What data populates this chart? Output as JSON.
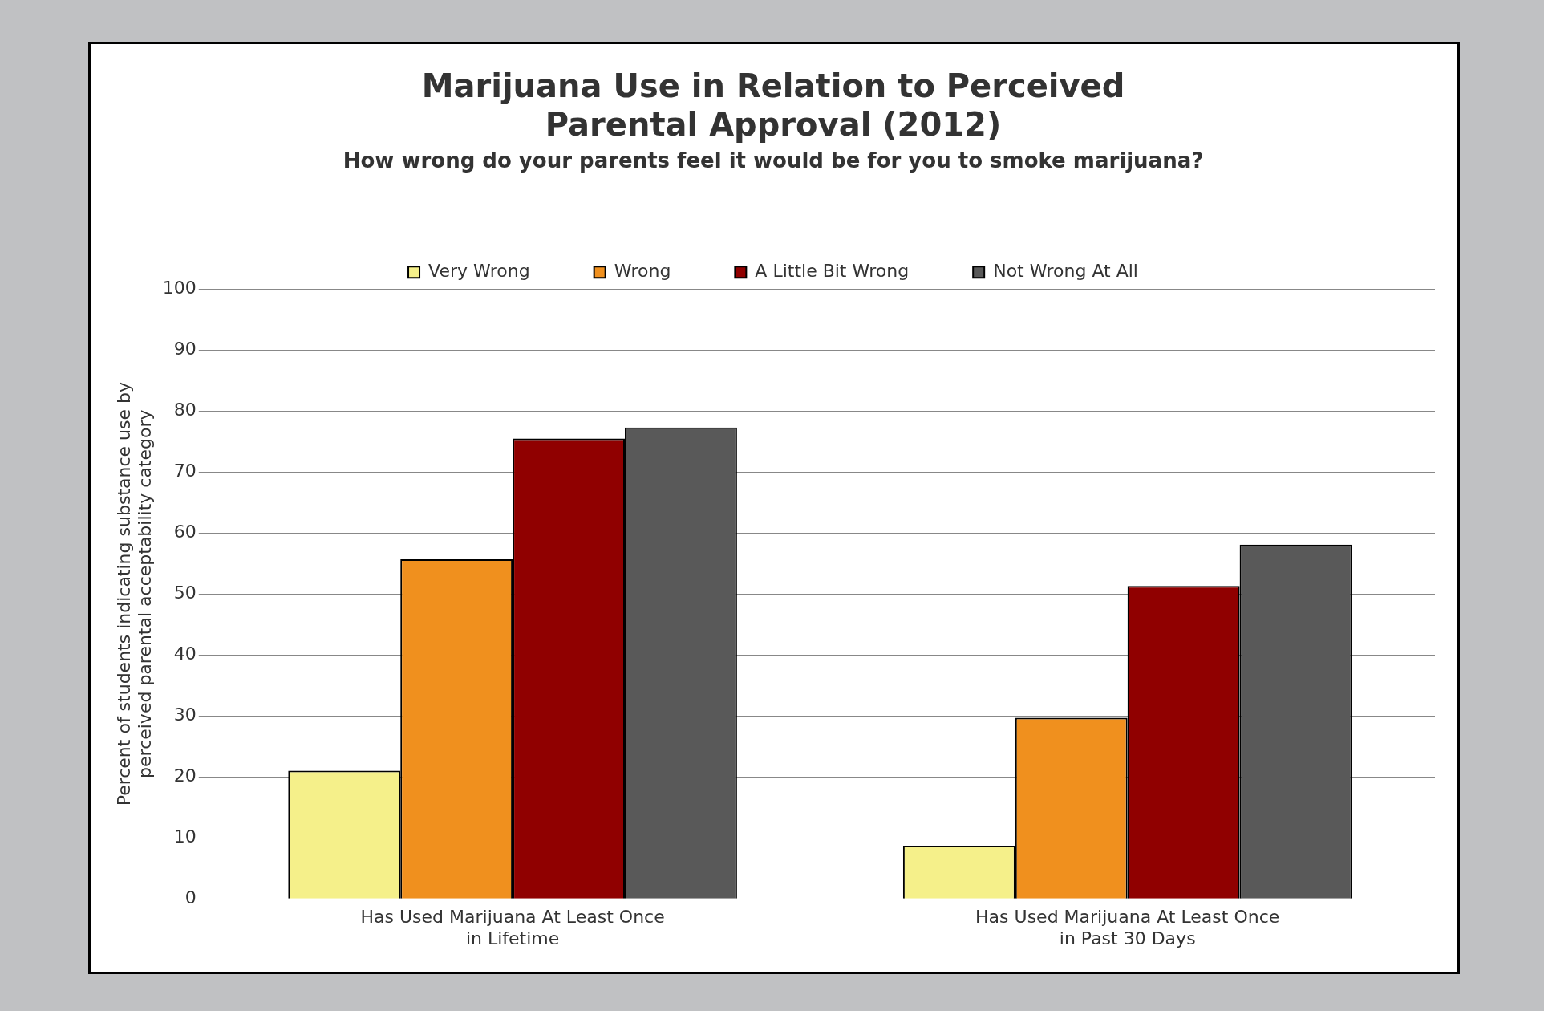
{
  "chart_data": {
    "type": "bar",
    "title": "Marijuana Use in Relation to Perceived Parental Approval (2012)",
    "subtitle": "How wrong do your parents feel it would be for you to smoke marijuana?",
    "ylabel": "Percent of students indicating substance use by perceived parental acceptability category",
    "categories": [
      "Has Used Marijuana At Least Once in Lifetime",
      "Has Used Marijuana At Least Once in Past 30 Days"
    ],
    "series": [
      {
        "name": "Very Wrong",
        "color": "#f5f08a",
        "values": [
          21.0,
          8.7
        ]
      },
      {
        "name": "Wrong",
        "color": "#f0901e",
        "values": [
          55.7,
          29.7
        ]
      },
      {
        "name": "A Little Bit Wrong",
        "color": "#900000",
        "values": [
          75.5,
          51.3
        ]
      },
      {
        "name": "Not Wrong At All",
        "color": "#595959",
        "values": [
          77.3,
          58.1
        ]
      }
    ],
    "ylim": [
      0,
      100
    ],
    "yticks": [
      0,
      10,
      20,
      30,
      40,
      50,
      60,
      70,
      80,
      90,
      100
    ],
    "grid": "y",
    "legend": "top"
  }
}
